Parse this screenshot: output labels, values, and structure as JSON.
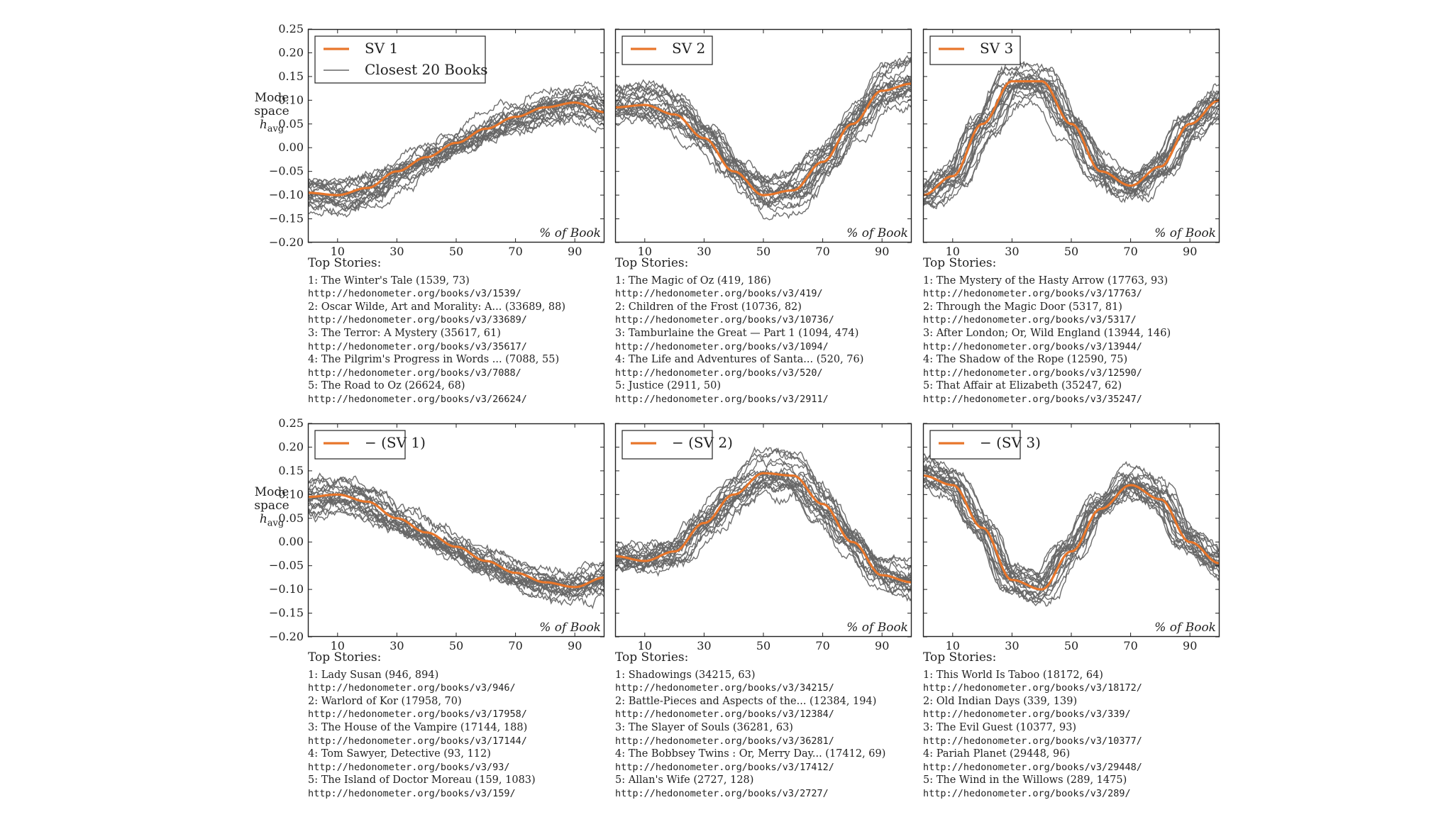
{
  "colors": {
    "sv": "#e8762b",
    "books": "#666666",
    "axis": "#222222"
  },
  "y_axis_label": {
    "line1": "Mode",
    "line2": "space",
    "line3": "h",
    "sub": "avg"
  },
  "stories_header": "Top Stories:",
  "chart_data": [
    {
      "type": "line",
      "legend": [
        "SV 1",
        "Closest 20 Books"
      ],
      "xlabel": "% of Book",
      "xlim": [
        0,
        100
      ],
      "ylim": [
        -0.2,
        0.25
      ],
      "xticks": [
        "10",
        "30",
        "50",
        "70",
        "90"
      ],
      "yticks": [
        "−0.20",
        "−0.15",
        "−0.10",
        "−0.05",
        "0.00",
        "0.05",
        "0.10",
        "0.15",
        "0.20",
        "0.25"
      ],
      "series": [
        {
          "name": "SV 1",
          "x": [
            0,
            10,
            20,
            30,
            40,
            50,
            60,
            70,
            80,
            90,
            100
          ],
          "values": [
            -0.095,
            -0.1,
            -0.085,
            -0.05,
            -0.02,
            0.01,
            0.04,
            0.065,
            0.085,
            0.095,
            0.075
          ]
        }
      ],
      "stories": [
        {
          "title": "1: The Winter's Tale (1539, 73)",
          "url": "http://hedonometer.org/books/v3/1539/"
        },
        {
          "title": "2: Oscar Wilde, Art and Morality: A... (33689, 88)",
          "url": "http://hedonometer.org/books/v3/33689/"
        },
        {
          "title": "3: The Terror: A Mystery (35617, 61)",
          "url": "http://hedonometer.org/books/v3/35617/"
        },
        {
          "title": "4: The Pilgrim's Progress in Words ... (7088, 55)",
          "url": "http://hedonometer.org/books/v3/7088/"
        },
        {
          "title": "5: The Road to Oz (26624, 68)",
          "url": "http://hedonometer.org/books/v3/26624/"
        }
      ]
    },
    {
      "type": "line",
      "legend": [
        "SV 2"
      ],
      "xlabel": "% of Book",
      "xlim": [
        0,
        100
      ],
      "ylim": [
        -0.2,
        0.25
      ],
      "xticks": [
        "10",
        "30",
        "50",
        "70",
        "90"
      ],
      "series": [
        {
          "name": "SV 2",
          "x": [
            0,
            10,
            20,
            30,
            40,
            50,
            60,
            70,
            80,
            90,
            100
          ],
          "values": [
            0.085,
            0.09,
            0.07,
            0.02,
            -0.05,
            -0.1,
            -0.09,
            -0.03,
            0.05,
            0.12,
            0.135
          ]
        }
      ],
      "stories": [
        {
          "title": "1: The Magic of Oz (419, 186)",
          "url": "http://hedonometer.org/books/v3/419/"
        },
        {
          "title": "2: Children of the Frost (10736, 82)",
          "url": "http://hedonometer.org/books/v3/10736/"
        },
        {
          "title": "3: Tamburlaine the Great — Part 1 (1094, 474)",
          "url": "http://hedonometer.org/books/v3/1094/"
        },
        {
          "title": "4: The Life and Adventures of Santa... (520, 76)",
          "url": "http://hedonometer.org/books/v3/520/"
        },
        {
          "title": "5: Justice (2911, 50)",
          "url": "http://hedonometer.org/books/v3/2911/"
        }
      ]
    },
    {
      "type": "line",
      "legend": [
        "SV 3"
      ],
      "xlabel": "% of Book",
      "xlim": [
        0,
        100
      ],
      "ylim": [
        -0.2,
        0.25
      ],
      "xticks": [
        "10",
        "30",
        "50",
        "70",
        "90"
      ],
      "series": [
        {
          "name": "SV 3",
          "x": [
            0,
            10,
            20,
            30,
            40,
            50,
            60,
            70,
            80,
            90,
            100
          ],
          "values": [
            -0.1,
            -0.06,
            0.05,
            0.14,
            0.14,
            0.05,
            -0.05,
            -0.08,
            -0.04,
            0.05,
            0.1
          ]
        }
      ],
      "stories": [
        {
          "title": "1: The Mystery of the Hasty Arrow (17763, 93)",
          "url": "http://hedonometer.org/books/v3/17763/"
        },
        {
          "title": "2: Through the Magic Door (5317, 81)",
          "url": "http://hedonometer.org/books/v3/5317/"
        },
        {
          "title": "3: After London; Or, Wild England (13944, 146)",
          "url": "http://hedonometer.org/books/v3/13944/"
        },
        {
          "title": "4: The Shadow of the Rope (12590, 75)",
          "url": "http://hedonometer.org/books/v3/12590/"
        },
        {
          "title": "5: That Affair at Elizabeth (35247, 62)",
          "url": "http://hedonometer.org/books/v3/35247/"
        }
      ]
    },
    {
      "type": "line",
      "legend": [
        "− (SV 1)"
      ],
      "xlabel": "% of Book",
      "xlim": [
        0,
        100
      ],
      "ylim": [
        -0.2,
        0.25
      ],
      "xticks": [
        "10",
        "30",
        "50",
        "70",
        "90"
      ],
      "yticks": [
        "−0.20",
        "−0.15",
        "−0.10",
        "−0.05",
        "0.00",
        "0.05",
        "0.10",
        "0.15",
        "0.20",
        "0.25"
      ],
      "series": [
        {
          "name": "− (SV 1)",
          "x": [
            0,
            10,
            20,
            30,
            40,
            50,
            60,
            70,
            80,
            90,
            100
          ],
          "values": [
            0.095,
            0.1,
            0.085,
            0.05,
            0.02,
            -0.01,
            -0.04,
            -0.065,
            -0.085,
            -0.095,
            -0.075
          ]
        }
      ],
      "stories": [
        {
          "title": "1: Lady Susan (946, 894)",
          "url": "http://hedonometer.org/books/v3/946/"
        },
        {
          "title": "2: Warlord of Kor (17958, 70)",
          "url": "http://hedonometer.org/books/v3/17958/"
        },
        {
          "title": "3: The House of the Vampire (17144, 188)",
          "url": "http://hedonometer.org/books/v3/17144/"
        },
        {
          "title": "4: Tom Sawyer, Detective (93, 112)",
          "url": "http://hedonometer.org/books/v3/93/"
        },
        {
          "title": "5: The Island of Doctor Moreau (159, 1083)",
          "url": "http://hedonometer.org/books/v3/159/"
        }
      ]
    },
    {
      "type": "line",
      "legend": [
        "− (SV 2)"
      ],
      "xlabel": "% of Book",
      "xlim": [
        0,
        100
      ],
      "ylim": [
        -0.2,
        0.25
      ],
      "xticks": [
        "10",
        "30",
        "50",
        "70",
        "90"
      ],
      "series": [
        {
          "name": "− (SV 2)",
          "x": [
            0,
            10,
            20,
            30,
            40,
            50,
            60,
            70,
            80,
            90,
            100
          ],
          "values": [
            -0.03,
            -0.04,
            -0.02,
            0.04,
            0.1,
            0.145,
            0.14,
            0.08,
            0.0,
            -0.07,
            -0.085
          ]
        }
      ],
      "stories": [
        {
          "title": "1: Shadowings (34215, 63)",
          "url": "http://hedonometer.org/books/v3/34215/"
        },
        {
          "title": "2: Battle-Pieces and Aspects of the... (12384, 194)",
          "url": "http://hedonometer.org/books/v3/12384/"
        },
        {
          "title": "3: The Slayer of Souls (36281, 63)",
          "url": "http://hedonometer.org/books/v3/36281/"
        },
        {
          "title": "4: The Bobbsey Twins : Or, Merry Day... (17412, 69)",
          "url": "http://hedonometer.org/books/v3/17412/"
        },
        {
          "title": "5: Allan's Wife (2727, 128)",
          "url": "http://hedonometer.org/books/v3/2727/"
        }
      ]
    },
    {
      "type": "line",
      "legend": [
        "− (SV 3)"
      ],
      "xlabel": "% of Book",
      "xlim": [
        0,
        100
      ],
      "ylim": [
        -0.2,
        0.25
      ],
      "xticks": [
        "10",
        "30",
        "50",
        "70",
        "90"
      ],
      "series": [
        {
          "name": "− (SV 3)",
          "x": [
            0,
            10,
            20,
            30,
            40,
            50,
            60,
            70,
            80,
            90,
            100
          ],
          "values": [
            0.14,
            0.12,
            0.03,
            -0.08,
            -0.1,
            -0.02,
            0.07,
            0.12,
            0.09,
            0.0,
            -0.045
          ]
        }
      ],
      "stories": [
        {
          "title": "1: This World Is Taboo (18172, 64)",
          "url": "http://hedonometer.org/books/v3/18172/"
        },
        {
          "title": "2: Old Indian Days (339, 139)",
          "url": "http://hedonometer.org/books/v3/339/"
        },
        {
          "title": "3: The Evil Guest (10377, 93)",
          "url": "http://hedonometer.org/books/v3/10377/"
        },
        {
          "title": "4: Pariah Planet (29448, 96)",
          "url": "http://hedonometer.org/books/v3/29448/"
        },
        {
          "title": "5: The Wind in the Willows (289, 1475)",
          "url": "http://hedonometer.org/books/v3/289/"
        }
      ]
    }
  ]
}
